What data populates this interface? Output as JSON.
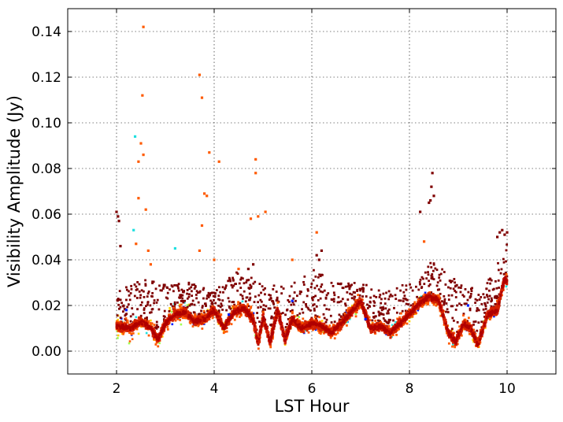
{
  "chart_data": {
    "type": "scatter",
    "title": "",
    "xlabel": "LST Hour",
    "ylabel": "Visibility Amplitude (Jy)",
    "xlim": [
      1,
      11
    ],
    "ylim": [
      -0.01,
      0.15
    ],
    "xticks": [
      2,
      4,
      6,
      8,
      10
    ],
    "xtick_labels": [
      "2",
      "4",
      "6",
      "8",
      "10"
    ],
    "yticks": [
      0.0,
      0.02,
      0.04,
      0.06,
      0.08,
      0.1,
      0.12,
      0.14
    ],
    "ytick_labels": [
      "0.00",
      "0.02",
      "0.04",
      "0.06",
      "0.08",
      "0.10",
      "0.12",
      "0.14"
    ],
    "grid": true,
    "legend": "none",
    "colors": {
      "dark_red": "#7f0000",
      "red": "#d42000",
      "orange": "#ff5a00",
      "yellow": "#ffd200",
      "green_yellow": "#a0ff50",
      "cyan": "#20e0e0",
      "blue": "#0020ff"
    },
    "main_trend": {
      "x": [
        2.0,
        2.3,
        2.5,
        2.7,
        2.85,
        3.0,
        3.2,
        3.4,
        3.6,
        3.8,
        4.0,
        4.2,
        4.4,
        4.6,
        4.8,
        4.9,
        5.0,
        5.15,
        5.3,
        5.45,
        5.6,
        5.8,
        6.0,
        6.2,
        6.4,
        6.6,
        6.8,
        7.0,
        7.2,
        7.4,
        7.6,
        7.8,
        8.0,
        8.2,
        8.4,
        8.6,
        8.8,
        8.95,
        9.1,
        9.25,
        9.4,
        9.6,
        9.8,
        9.95,
        10.0
      ],
      "y": [
        0.011,
        0.01,
        0.013,
        0.01,
        0.005,
        0.012,
        0.016,
        0.017,
        0.013,
        0.014,
        0.018,
        0.01,
        0.017,
        0.019,
        0.014,
        0.003,
        0.015,
        0.004,
        0.018,
        0.005,
        0.014,
        0.01,
        0.012,
        0.011,
        0.008,
        0.012,
        0.017,
        0.022,
        0.01,
        0.011,
        0.008,
        0.012,
        0.016,
        0.021,
        0.024,
        0.022,
        0.008,
        0.004,
        0.012,
        0.01,
        0.003,
        0.016,
        0.018,
        0.032,
        0.03
      ],
      "spread": 0.0025
    },
    "dark_red_scatter_band": {
      "x": [
        2.0,
        2.5,
        3.0,
        3.5,
        4.0,
        4.5,
        5.0,
        5.5,
        6.0,
        6.5,
        7.0,
        7.5,
        8.0,
        8.5,
        9.0,
        9.5,
        10.0
      ],
      "y_high": [
        0.028,
        0.032,
        0.03,
        0.03,
        0.026,
        0.036,
        0.03,
        0.028,
        0.036,
        0.03,
        0.03,
        0.026,
        0.03,
        0.04,
        0.03,
        0.026,
        0.048
      ]
    },
    "outliers": {
      "dark_red": [
        [
          2.0,
          0.061
        ],
        [
          2.03,
          0.059
        ],
        [
          2.05,
          0.057
        ],
        [
          2.08,
          0.046
        ],
        [
          8.4,
          0.065
        ],
        [
          8.43,
          0.066
        ],
        [
          8.45,
          0.072
        ],
        [
          8.47,
          0.078
        ],
        [
          8.5,
          0.068
        ],
        [
          8.22,
          0.061
        ],
        [
          9.8,
          0.05
        ],
        [
          9.85,
          0.052
        ],
        [
          9.9,
          0.053
        ],
        [
          9.95,
          0.051
        ],
        [
          10.0,
          0.052
        ],
        [
          6.1,
          0.042
        ],
        [
          6.15,
          0.04
        ],
        [
          6.2,
          0.044
        ],
        [
          4.7,
          0.036
        ],
        [
          4.8,
          0.038
        ]
      ],
      "orange": [
        [
          2.55,
          0.142
        ],
        [
          2.53,
          0.112
        ],
        [
          2.45,
          0.083
        ],
        [
          2.5,
          0.091
        ],
        [
          2.55,
          0.086
        ],
        [
          2.45,
          0.067
        ],
        [
          2.6,
          0.062
        ],
        [
          3.7,
          0.121
        ],
        [
          3.75,
          0.111
        ],
        [
          3.9,
          0.087
        ],
        [
          3.85,
          0.068
        ],
        [
          3.8,
          0.069
        ],
        [
          4.1,
          0.083
        ],
        [
          4.85,
          0.084
        ],
        [
          4.85,
          0.078
        ],
        [
          4.9,
          0.059
        ],
        [
          5.05,
          0.061
        ],
        [
          4.75,
          0.058
        ],
        [
          3.75,
          0.055
        ],
        [
          3.7,
          0.044
        ],
        [
          2.4,
          0.047
        ],
        [
          2.65,
          0.044
        ],
        [
          4.0,
          0.04
        ],
        [
          4.5,
          0.036
        ],
        [
          6.1,
          0.052
        ],
        [
          5.6,
          0.04
        ],
        [
          8.3,
          0.048
        ],
        [
          2.7,
          0.038
        ]
      ],
      "cyan": [
        [
          2.38,
          0.094
        ],
        [
          3.2,
          0.045
        ],
        [
          2.35,
          0.053
        ]
      ],
      "blue": [
        [
          2.2,
          0.018
        ],
        [
          4.3,
          0.016
        ],
        [
          7.1,
          0.014
        ],
        [
          9.2,
          0.02
        ],
        [
          5.6,
          0.022
        ]
      ]
    }
  }
}
